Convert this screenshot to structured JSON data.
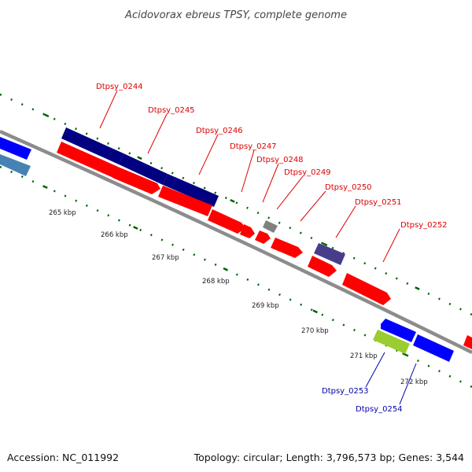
{
  "title": "Acidovorax ebreus TPSY, complete genome",
  "footer": {
    "accession": "Accession: NC_011992",
    "summary": "Topology: circular; Length: 3,796,573 bp; Genes: 3,544"
  },
  "colors": {
    "forward_gene": "#ff0000",
    "reverse_gene": "#0000ff",
    "navy_gene": "#000080",
    "steel_gene": "#4682b4",
    "purple_gene": "#483d8b",
    "gray_gene": "#808080",
    "green_gene": "#9acd32",
    "backbone": "#999999",
    "tick": "#006400",
    "forward_label": "#dd0000",
    "reverse_label": "#0000aa"
  },
  "scale_labels": [
    "265 kbp",
    "266 kbp",
    "267 kbp",
    "268 kbp",
    "269 kbp",
    "270 kbp",
    "271 kbp",
    "272 kbp"
  ],
  "gene_labels": [
    {
      "text": "Dtpsy_0244",
      "strand": "forward"
    },
    {
      "text": "Dtpsy_0245",
      "strand": "forward"
    },
    {
      "text": "Dtpsy_0246",
      "strand": "forward"
    },
    {
      "text": "Dtpsy_0247",
      "strand": "forward"
    },
    {
      "text": "Dtpsy_0248",
      "strand": "forward"
    },
    {
      "text": "Dtpsy_0249",
      "strand": "forward"
    },
    {
      "text": "Dtpsy_0250",
      "strand": "forward"
    },
    {
      "text": "Dtpsy_0251",
      "strand": "forward"
    },
    {
      "text": "Dtpsy_0252",
      "strand": "forward"
    },
    {
      "text": "Dtpsy_0253",
      "strand": "reverse"
    },
    {
      "text": "Dtpsy_0254",
      "strand": "reverse"
    }
  ]
}
